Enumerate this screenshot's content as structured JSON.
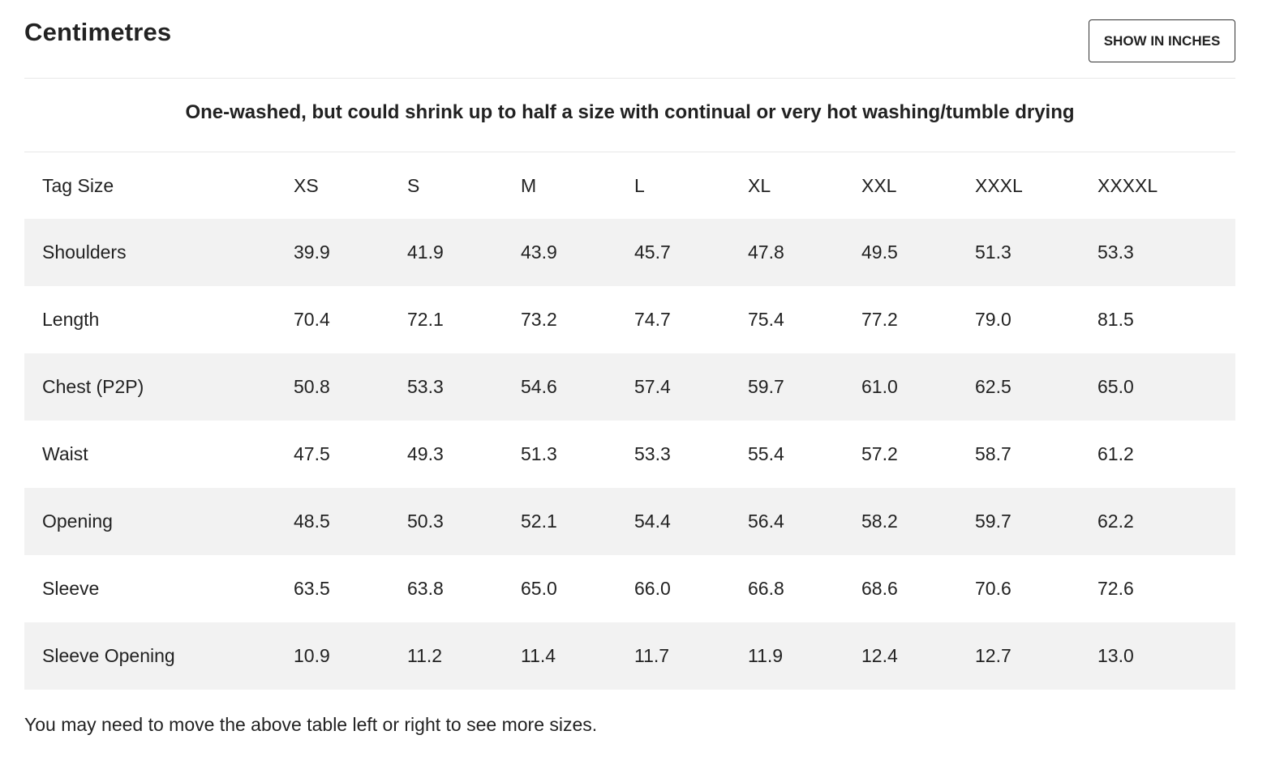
{
  "header": {
    "title": "Centimetres",
    "toggle_label": "SHOW IN INCHES"
  },
  "note": "One-washed, but could shrink up to half a size with continual or very hot washing/tumble drying",
  "table": {
    "columns": [
      "Tag Size",
      "XS",
      "S",
      "M",
      "L",
      "XL",
      "XXL",
      "XXXL",
      "XXXXL"
    ],
    "rows": [
      {
        "label": "Shoulders",
        "values": [
          "39.9",
          "41.9",
          "43.9",
          "45.7",
          "47.8",
          "49.5",
          "51.3",
          "53.3"
        ]
      },
      {
        "label": "Length",
        "values": [
          "70.4",
          "72.1",
          "73.2",
          "74.7",
          "75.4",
          "77.2",
          "79.0",
          "81.5"
        ]
      },
      {
        "label": "Chest (P2P)",
        "values": [
          "50.8",
          "53.3",
          "54.6",
          "57.4",
          "59.7",
          "61.0",
          "62.5",
          "65.0"
        ]
      },
      {
        "label": "Waist",
        "values": [
          "47.5",
          "49.3",
          "51.3",
          "53.3",
          "55.4",
          "57.2",
          "58.7",
          "61.2"
        ]
      },
      {
        "label": "Opening",
        "values": [
          "48.5",
          "50.3",
          "52.1",
          "54.4",
          "56.4",
          "58.2",
          "59.7",
          "62.2"
        ]
      },
      {
        "label": "Sleeve",
        "values": [
          "63.5",
          "63.8",
          "65.0",
          "66.0",
          "66.8",
          "68.6",
          "70.6",
          "72.6"
        ]
      },
      {
        "label": "Sleeve Opening",
        "values": [
          "10.9",
          "11.2",
          "11.4",
          "11.7",
          "11.9",
          "12.4",
          "12.7",
          "13.0"
        ]
      }
    ]
  },
  "footer_note": "You may need to move the above table left or right to see more sizes.",
  "colors": {
    "text": "#222222",
    "stripe": "#f2f2f2",
    "divider": "#e8e8e8",
    "button_border": "#333333"
  }
}
